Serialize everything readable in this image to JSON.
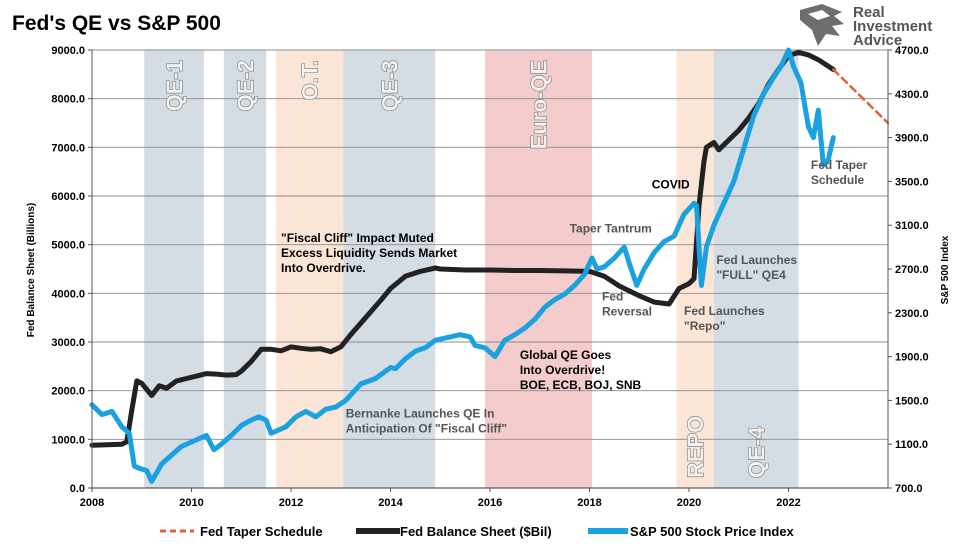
{
  "chart_data": {
    "type": "line",
    "title": "Fed's QE vs S&P 500",
    "xlabel": "",
    "ylabel_left": "Fed Balance Sheet (Billions)",
    "ylabel_right": "S&P 500 Index",
    "xlim": [
      2008,
      2024
    ],
    "ylim_left": [
      0,
      9000
    ],
    "ylim_right": [
      700,
      4700
    ],
    "x_ticks": [
      "2008",
      "2010",
      "2012",
      "2014",
      "2016",
      "2018",
      "2020",
      "2022"
    ],
    "y_ticks_left": [
      "0.0",
      "1000.0",
      "2000.0",
      "3000.0",
      "4000.0",
      "5000.0",
      "6000.0",
      "7000.0",
      "8000.0",
      "9000.0"
    ],
    "y_ticks_right": [
      "700.0",
      "1100.0",
      "1500.0",
      "1900.0",
      "2300.0",
      "2700.0",
      "3100.0",
      "3500.0",
      "3900.0",
      "4300.0",
      "4700.0"
    ],
    "grid": "horizontal",
    "legend_position": "bottom",
    "bands": [
      {
        "label": "QE-1",
        "start": 2009.05,
        "end": 2010.25,
        "color": "#d4dce4"
      },
      {
        "label": "QE-2",
        "start": 2010.65,
        "end": 2011.5,
        "color": "#d4dce4"
      },
      {
        "label": "O.T.",
        "start": 2011.7,
        "end": 2013.05,
        "color": "#fbe5d6"
      },
      {
        "label": "QE-3",
        "start": 2013.05,
        "end": 2014.9,
        "color": "#d4dce4"
      },
      {
        "label": "Euro-QE",
        "start": 2015.9,
        "end": 2018.05,
        "color": "#f4cccc"
      },
      {
        "label": "REPO",
        "start": 2019.75,
        "end": 2020.5,
        "color": "#fbe5d6"
      },
      {
        "label": "QE-4",
        "start": 2020.5,
        "end": 2022.2,
        "color": "#d4dce4"
      }
    ],
    "series": [
      {
        "name": "Fed Balance Sheet ($Bil)",
        "axis": "left",
        "color": "#222222",
        "x": [
          2008.0,
          2008.6,
          2008.7,
          2008.8,
          2008.9,
          2009.0,
          2009.2,
          2009.35,
          2009.5,
          2009.7,
          2009.9,
          2010.1,
          2010.3,
          2010.5,
          2010.7,
          2010.9,
          2011.0,
          2011.2,
          2011.4,
          2011.6,
          2011.8,
          2012.0,
          2012.2,
          2012.4,
          2012.6,
          2012.8,
          2013.0,
          2013.2,
          2013.5,
          2013.8,
          2014.0,
          2014.3,
          2014.6,
          2014.9,
          2015.0,
          2015.5,
          2016.0,
          2016.5,
          2017.0,
          2017.5,
          2018.0,
          2018.3,
          2018.6,
          2019.0,
          2019.3,
          2019.6,
          2019.8,
          2020.0,
          2020.1,
          2020.2,
          2020.3,
          2020.35,
          2020.5,
          2020.6,
          2020.8,
          2021.0,
          2021.2,
          2021.4,
          2021.6,
          2021.8,
          2022.0,
          2022.2,
          2022.4,
          2022.6,
          2022.9
        ],
        "values": [
          880,
          900,
          950,
          1600,
          2200,
          2150,
          1900,
          2100,
          2050,
          2200,
          2250,
          2300,
          2350,
          2340,
          2320,
          2330,
          2400,
          2600,
          2850,
          2850,
          2820,
          2900,
          2870,
          2850,
          2860,
          2800,
          2900,
          3150,
          3500,
          3850,
          4100,
          4350,
          4450,
          4520,
          4500,
          4480,
          4480,
          4470,
          4470,
          4460,
          4450,
          4350,
          4150,
          3950,
          3820,
          3780,
          4100,
          4200,
          4300,
          5800,
          6700,
          7000,
          7100,
          6950,
          7150,
          7350,
          7600,
          7900,
          8300,
          8600,
          8880,
          8950,
          8900,
          8800,
          8600
        ]
      },
      {
        "name": "S&P 500 Stock Price Index",
        "axis": "right",
        "color": "#1aa1e0",
        "x": [
          2008.0,
          2008.2,
          2008.4,
          2008.6,
          2008.75,
          2008.85,
          2008.95,
          2009.1,
          2009.2,
          2009.4,
          2009.6,
          2009.8,
          2010.0,
          2010.15,
          2010.3,
          2010.45,
          2010.6,
          2010.8,
          2011.0,
          2011.2,
          2011.35,
          2011.5,
          2011.6,
          2011.75,
          2011.9,
          2012.1,
          2012.3,
          2012.5,
          2012.7,
          2012.9,
          2013.1,
          2013.4,
          2013.7,
          2014.0,
          2014.1,
          2014.3,
          2014.5,
          2014.7,
          2014.9,
          2015.2,
          2015.4,
          2015.6,
          2015.7,
          2015.9,
          2016.1,
          2016.3,
          2016.5,
          2016.7,
          2016.9,
          2017.1,
          2017.3,
          2017.5,
          2017.7,
          2017.9,
          2018.05,
          2018.15,
          2018.3,
          2018.5,
          2018.7,
          2018.8,
          2018.95,
          2019.1,
          2019.3,
          2019.5,
          2019.7,
          2019.9,
          2020.1,
          2020.15,
          2020.25,
          2020.35,
          2020.5,
          2020.7,
          2020.9,
          2021.1,
          2021.3,
          2021.5,
          2021.7,
          2021.85,
          2022.0,
          2022.1,
          2022.25,
          2022.4,
          2022.5,
          2022.6,
          2022.7,
          2022.8,
          2022.9
        ],
        "values": [
          1460,
          1370,
          1400,
          1260,
          1200,
          900,
          880,
          860,
          760,
          920,
          1000,
          1080,
          1120,
          1150,
          1180,
          1050,
          1100,
          1180,
          1270,
          1320,
          1350,
          1320,
          1200,
          1230,
          1260,
          1350,
          1400,
          1350,
          1420,
          1440,
          1500,
          1650,
          1700,
          1800,
          1790,
          1880,
          1950,
          1980,
          2050,
          2080,
          2100,
          2080,
          2000,
          1980,
          1900,
          2050,
          2100,
          2160,
          2240,
          2350,
          2420,
          2470,
          2550,
          2650,
          2800,
          2700,
          2720,
          2800,
          2900,
          2750,
          2550,
          2700,
          2850,
          2950,
          3000,
          3200,
          3300,
          3280,
          2550,
          2900,
          3100,
          3300,
          3500,
          3800,
          4100,
          4300,
          4450,
          4550,
          4700,
          4550,
          4400,
          4000,
          3900,
          4150,
          3650,
          3700,
          3900
        ]
      },
      {
        "name": "Fed Taper Schedule",
        "axis": "left",
        "color": "#e06040",
        "dashed": true,
        "x": [
          2022.9,
          2024.0
        ],
        "values": [
          8600,
          7500
        ]
      }
    ],
    "annotations": [
      {
        "text": [
          "\"Fiscal Cliff\" Impact Muted",
          "Excess Liquidity Sends Market",
          "Into Overdrive."
        ],
        "x": 2011.8,
        "y": 5050,
        "color": "#000000"
      },
      {
        "text": [
          "Bernanke Launches QE In",
          "Anticipation Of \"Fiscal Cliff\""
        ],
        "x": 2013.1,
        "y": 1450,
        "color": "#555555"
      },
      {
        "text": [
          "Global QE Goes",
          "Into Overdrive!",
          "BOE, ECB, BOJ, SNB"
        ],
        "x": 2016.6,
        "y": 2650,
        "color": "#000000"
      },
      {
        "text": [
          "Taper Tantrum"
        ],
        "x": 2017.6,
        "y": 5250,
        "color": "#555555"
      },
      {
        "text": [
          "Fed",
          "Reversal"
        ],
        "x": 2018.25,
        "y": 3850,
        "color": "#555555"
      },
      {
        "text": [
          "COVID"
        ],
        "x": 2019.25,
        "y": 6150,
        "color": "#000000"
      },
      {
        "text": [
          "Fed Launches",
          "\"Repo\""
        ],
        "x": 2019.9,
        "y": 3550,
        "color": "#555555"
      },
      {
        "text": [
          "Fed Launches",
          "\"FULL\" QE4"
        ],
        "x": 2020.55,
        "y": 4600,
        "color": "#555555"
      },
      {
        "text": [
          "Fed Taper",
          "Schedule"
        ],
        "x": 2022.45,
        "y": 6550,
        "color": "#555555"
      }
    ]
  },
  "logo": {
    "lines": [
      "Real",
      "Investment",
      "Advice"
    ]
  }
}
